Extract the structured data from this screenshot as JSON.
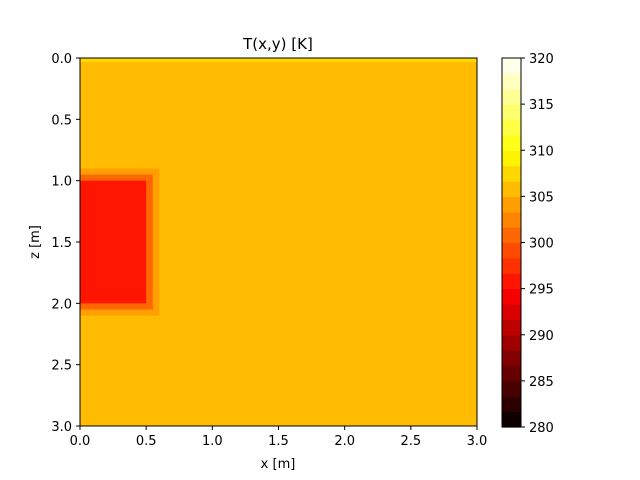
{
  "chart_data": {
    "type": "heatmap",
    "title": "T(x,y) [K]",
    "xlabel": "x [m]",
    "ylabel": "z [m]",
    "xlim": [
      0.0,
      3.0
    ],
    "ylim": [
      3.0,
      0.0
    ],
    "xticks": [
      "0.0",
      "0.5",
      "1.0",
      "1.5",
      "2.0",
      "2.5",
      "3.0"
    ],
    "yticks": [
      "0.0",
      "0.5",
      "1.0",
      "1.5",
      "2.0",
      "2.5",
      "3.0"
    ],
    "colorbar": {
      "min": 280,
      "max": 320,
      "ticks": [
        "280",
        "285",
        "290",
        "295",
        "300",
        "305",
        "310",
        "315",
        "320"
      ],
      "colormap": "hot",
      "levels": 24
    },
    "background_temperature": 306,
    "top_boundary_temperature": 308,
    "regions": [
      {
        "x": [
          0.0,
          0.5
        ],
        "z": [
          1.0,
          2.0
        ],
        "temperature": 296
      },
      {
        "x": [
          0.0,
          0.55
        ],
        "z": [
          0.95,
          2.05
        ],
        "temperature": 300
      },
      {
        "x": [
          0.0,
          0.6
        ],
        "z": [
          0.9,
          2.1
        ],
        "temperature": 304
      }
    ]
  }
}
